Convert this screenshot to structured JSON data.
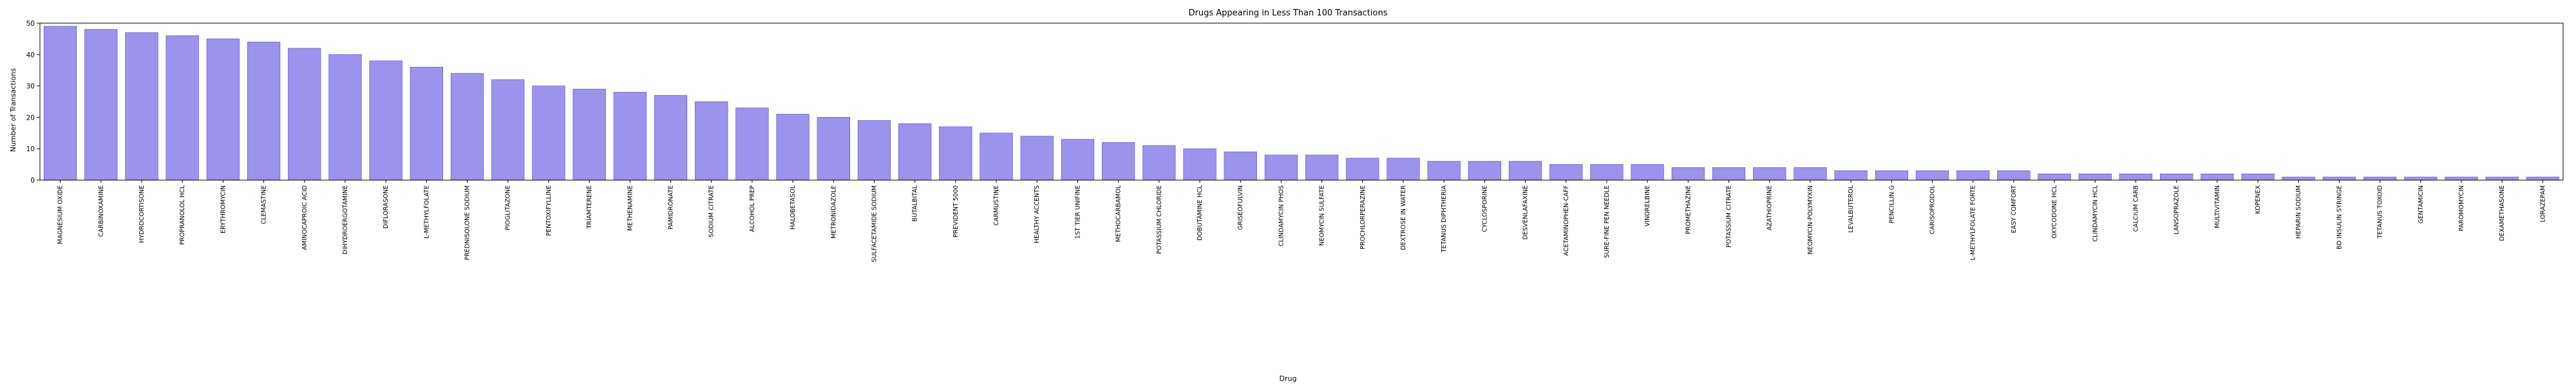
{
  "chart_data": {
    "type": "bar",
    "title": "Drugs Appearing in Less Than 100 Transactions",
    "xlabel": "Drug",
    "ylabel": "Number of Transactions",
    "ylim": [
      0,
      50
    ],
    "yticks": [
      0,
      10,
      20,
      30,
      40,
      50
    ],
    "grid": false,
    "bar_color": "#9b93ec",
    "bar_edge_color": "#6f63d8",
    "categories": [
      "MAGNESIUM OXIDE",
      "CARBINOXAMINE",
      "HYDROCORTISONE",
      "PROPRANOLOL HCL",
      "ERYTHROMYCIN",
      "CLEMASTINE",
      "AMINOCAPROIC ACID",
      "DIHYDROERGOTAMINE",
      "DIFLORASONE",
      "L-METHYLFOLATE",
      "PREDNISOLONE SODIUM",
      "PIOGLITAZONE",
      "PENTOXIFYLLINE",
      "TRIAMTERENE",
      "METHENAMINE",
      "PAMIDRONATE",
      "SODIUM CITRATE",
      "ALCOHOL PREP",
      "HALOBETASOL",
      "METRONIDAZOLE",
      "SULFACETAMIDE SODIUM",
      "BUTALBITAL",
      "PREVIDENT 5000",
      "CARMUSTINE",
      "HEALTHY ACCENTS",
      "1ST TIER UNIFINE",
      "METHOCARBAMOL",
      "POTASSIUM CHLORIDE",
      "DOBUTAMINE HCL",
      "GRISEOFULVIN",
      "CLINDAMYCIN PHOS",
      "NEOMYCIN SULFATE",
      "PROCHLORPERAZINE",
      "DEXTROSE IN WATER",
      "TETANUS DIPHTHERIA",
      "CYCLOSPORINE",
      "DESVENLAFAXINE",
      "ACETAMINOPHEN-CAFF",
      "SURE-FINE PEN NEEDLE",
      "VINORELBINE",
      "PROMETHAZINE",
      "POTASSIUM CITRATE",
      "AZATHIOPRINE",
      "NEOMYCIN-POLYMYXIN",
      "LEVALBUTEROL",
      "PENCILLIN G",
      "CARISOPRODOL",
      "L-METHYLFOLATE FORTE",
      "EASY COMFORT",
      "OXYCODONE HCL",
      "CLINDAMYCIN HCL",
      "CALCIUM CARB",
      "LANSOPRAZOLE",
      "MULTIVITAMIN",
      "KOPENEX",
      "HEPARIN SODIUM",
      "BD INSULIN SYRINGE",
      "TETANUS TOXOID",
      "GENTAMICIN",
      "PAROMOMYCIN",
      "DEXAMETHASONE",
      "LORAZEPAM"
    ],
    "values": [
      49,
      48,
      47,
      46,
      45,
      44,
      42,
      40,
      38,
      36,
      34,
      32,
      30,
      29,
      28,
      27,
      25,
      23,
      21,
      20,
      19,
      18,
      17,
      15,
      14,
      13,
      12,
      11,
      10,
      9,
      8,
      8,
      7,
      7,
      6,
      6,
      6,
      5,
      5,
      5,
      4,
      4,
      4,
      4,
      3,
      3,
      3,
      3,
      3,
      2,
      2,
      2,
      2,
      2,
      2,
      1,
      1,
      1,
      1,
      1,
      1,
      1
    ]
  }
}
